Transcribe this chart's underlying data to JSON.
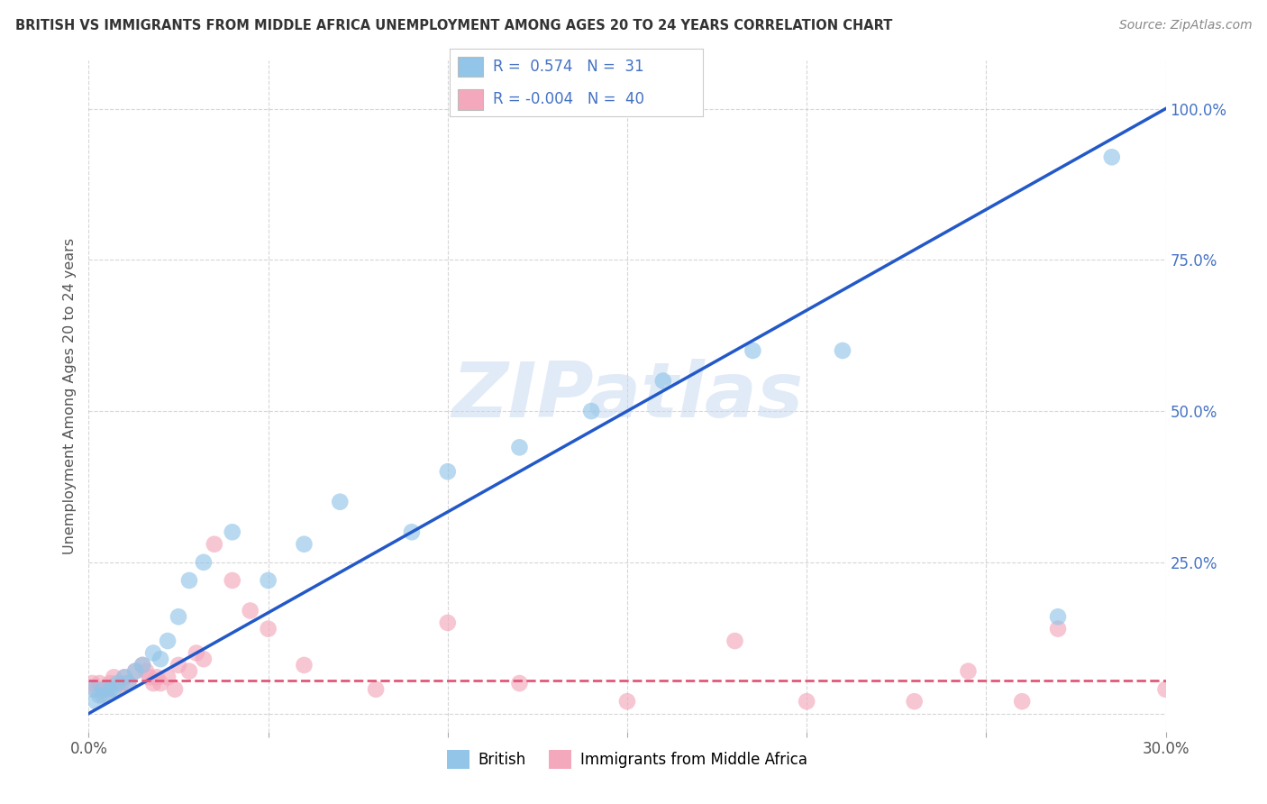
{
  "title": "BRITISH VS IMMIGRANTS FROM MIDDLE AFRICA UNEMPLOYMENT AMONG AGES 20 TO 24 YEARS CORRELATION CHART",
  "source": "Source: ZipAtlas.com",
  "ylabel": "Unemployment Among Ages 20 to 24 years",
  "xmin": 0.0,
  "xmax": 0.3,
  "ymin": -0.03,
  "ymax": 1.08,
  "british_color": "#92c5e8",
  "immigrant_color": "#f4a8bc",
  "blue_line_color": "#2258c8",
  "pink_line_color": "#e05878",
  "watermark": "ZIPatlas",
  "R_british": 0.574,
  "N_british": 31,
  "R_immigrant": -0.004,
  "N_immigrant": 40,
  "blue_line_x0": 0.0,
  "blue_line_y0": 0.0,
  "blue_line_x1": 0.3,
  "blue_line_y1": 1.0,
  "pink_line_x0": 0.0,
  "pink_line_y0": 0.055,
  "pink_line_x1": 0.3,
  "pink_line_y1": 0.055,
  "british_x": [
    0.001,
    0.002,
    0.003,
    0.004,
    0.005,
    0.006,
    0.007,
    0.008,
    0.01,
    0.011,
    0.013,
    0.015,
    0.018,
    0.02,
    0.022,
    0.025,
    0.028,
    0.032,
    0.04,
    0.05,
    0.06,
    0.07,
    0.09,
    0.1,
    0.12,
    0.14,
    0.16,
    0.185,
    0.21,
    0.27,
    0.285
  ],
  "british_y": [
    0.04,
    0.02,
    0.03,
    0.04,
    0.03,
    0.04,
    0.04,
    0.05,
    0.06,
    0.05,
    0.07,
    0.08,
    0.1,
    0.09,
    0.12,
    0.16,
    0.22,
    0.25,
    0.3,
    0.22,
    0.28,
    0.35,
    0.3,
    0.4,
    0.44,
    0.5,
    0.55,
    0.6,
    0.6,
    0.16,
    0.92
  ],
  "immigrant_x": [
    0.001,
    0.002,
    0.003,
    0.004,
    0.005,
    0.006,
    0.007,
    0.008,
    0.009,
    0.01,
    0.011,
    0.013,
    0.015,
    0.016,
    0.017,
    0.018,
    0.019,
    0.02,
    0.022,
    0.024,
    0.025,
    0.028,
    0.03,
    0.032,
    0.035,
    0.04,
    0.045,
    0.05,
    0.06,
    0.08,
    0.1,
    0.12,
    0.15,
    0.18,
    0.2,
    0.23,
    0.245,
    0.26,
    0.27,
    0.3
  ],
  "immigrant_y": [
    0.05,
    0.04,
    0.05,
    0.03,
    0.04,
    0.05,
    0.06,
    0.04,
    0.05,
    0.06,
    0.05,
    0.07,
    0.08,
    0.07,
    0.06,
    0.05,
    0.06,
    0.05,
    0.06,
    0.04,
    0.08,
    0.07,
    0.1,
    0.09,
    0.28,
    0.22,
    0.17,
    0.14,
    0.08,
    0.04,
    0.15,
    0.05,
    0.02,
    0.12,
    0.02,
    0.02,
    0.07,
    0.02,
    0.14,
    0.04
  ]
}
